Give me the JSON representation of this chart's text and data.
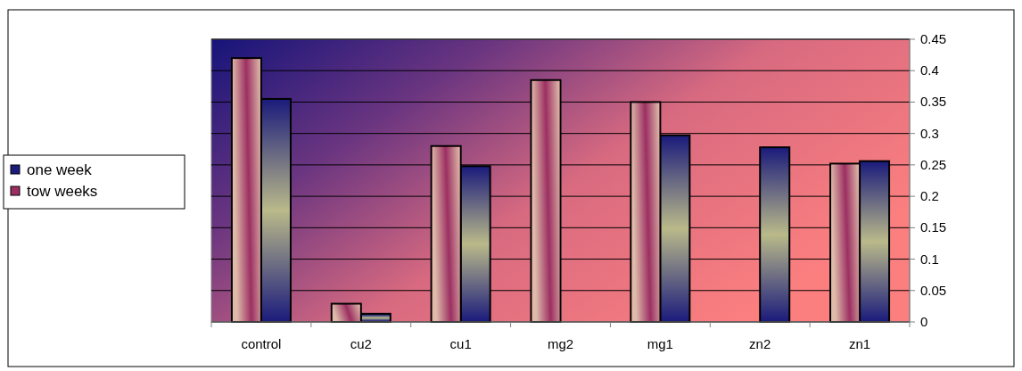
{
  "chart_data": {
    "type": "bar",
    "categories": [
      "control",
      "cu2",
      "cu1",
      "mg2",
      "mg1",
      "zn2",
      "zn1"
    ],
    "series": [
      {
        "name": "one week",
        "color": "#1c1c7c",
        "values": [
          0.355,
          0.013,
          0.248,
          null,
          0.297,
          0.278,
          0.256
        ]
      },
      {
        "name": "tow weeks",
        "color": "#9c2f62",
        "values": [
          0.42,
          0.029,
          0.28,
          0.385,
          0.35,
          null,
          0.252
        ]
      }
    ],
    "ylim": [
      0,
      0.45
    ],
    "yticks": [
      0,
      0.05,
      0.1,
      0.15,
      0.2,
      0.25,
      0.3,
      0.35,
      0.4,
      0.45
    ],
    "grid": "y",
    "legend": "left"
  }
}
